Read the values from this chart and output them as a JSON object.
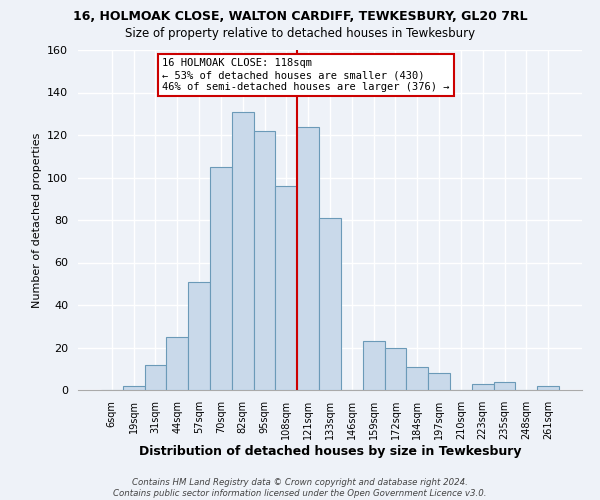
{
  "title": "16, HOLMOAK CLOSE, WALTON CARDIFF, TEWKESBURY, GL20 7RL",
  "subtitle": "Size of property relative to detached houses in Tewkesbury",
  "xlabel": "Distribution of detached houses by size in Tewkesbury",
  "ylabel": "Number of detached properties",
  "bar_labels": [
    "6sqm",
    "19sqm",
    "31sqm",
    "44sqm",
    "57sqm",
    "70sqm",
    "82sqm",
    "95sqm",
    "108sqm",
    "121sqm",
    "133sqm",
    "146sqm",
    "159sqm",
    "172sqm",
    "184sqm",
    "197sqm",
    "210sqm",
    "223sqm",
    "235sqm",
    "248sqm",
    "261sqm"
  ],
  "bar_values": [
    0,
    2,
    12,
    25,
    51,
    105,
    131,
    122,
    96,
    124,
    81,
    0,
    23,
    20,
    11,
    8,
    0,
    3,
    4,
    0,
    2
  ],
  "bar_color": "#c9d9ea",
  "bar_edge_color": "#6b9ab8",
  "ylim": [
    0,
    160
  ],
  "yticks": [
    0,
    20,
    40,
    60,
    80,
    100,
    120,
    140,
    160
  ],
  "marker_label": "16 HOLMOAK CLOSE: 118sqm",
  "annotation_line1": "← 53% of detached houses are smaller (430)",
  "annotation_line2": "46% of semi-detached houses are larger (376) →",
  "footer1": "Contains HM Land Registry data © Crown copyright and database right 2024.",
  "footer2": "Contains public sector information licensed under the Open Government Licence v3.0.",
  "bg_color": "#eef2f8",
  "grid_color": "#ffffff",
  "title_fontsize": 9,
  "subtitle_fontsize": 8.5
}
